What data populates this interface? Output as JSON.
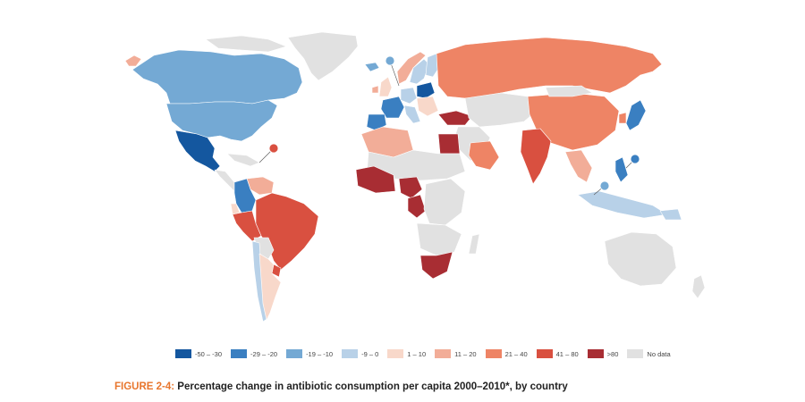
{
  "map": {
    "colors": {
      "cat_neg50_neg30": "#14579f",
      "cat_neg29_neg20": "#3a7fc1",
      "cat_neg19_neg10": "#74a9d4",
      "cat_neg9_0": "#b8d1e8",
      "cat_1_10": "#f8d8ca",
      "cat_11_20": "#f2ad98",
      "cat_21_40": "#ee8465",
      "cat_41_80": "#d95040",
      "cat_gt80": "#a82d33",
      "no_data": "#e1e1e1"
    },
    "markers": [
      {
        "name": "denmark-marker",
        "category": "cat_neg19_neg10"
      },
      {
        "name": "puerto-rico-marker",
        "category": "cat_41_80"
      },
      {
        "name": "philippines-marker",
        "category": "cat_neg29_neg20"
      },
      {
        "name": "singapore-marker",
        "category": "cat_neg19_neg10"
      }
    ]
  },
  "legend": {
    "items": [
      {
        "label": "-50 – -30",
        "category": "cat_neg50_neg30"
      },
      {
        "label": "-29 – -20",
        "category": "cat_neg29_neg20"
      },
      {
        "label": "-19 – -10",
        "category": "cat_neg19_neg10"
      },
      {
        "label": "-9 – 0",
        "category": "cat_neg9_0"
      },
      {
        "label": "1 – 10",
        "category": "cat_1_10"
      },
      {
        "label": "11 – 20",
        "category": "cat_11_20"
      },
      {
        "label": "21 – 40",
        "category": "cat_21_40"
      },
      {
        "label": "41 – 80",
        "category": "cat_41_80"
      },
      {
        "label": ">80",
        "category": "cat_gt80"
      },
      {
        "label": "No data",
        "category": "no_data"
      }
    ]
  },
  "caption": {
    "prefix": "FIGURE 2-4:",
    "text": " Percentage change in antibiotic consumption per capita 2000–2010*, by country"
  }
}
